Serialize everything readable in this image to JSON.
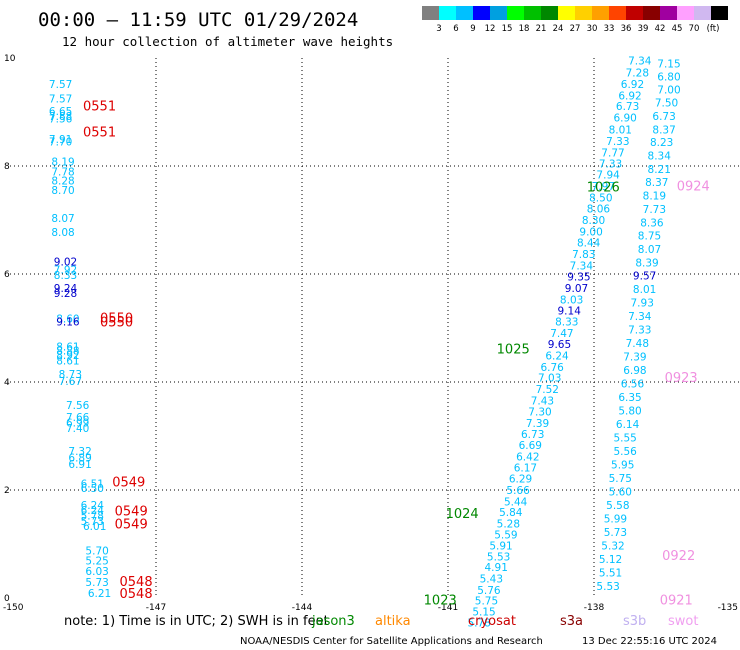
{
  "header": {
    "title": "00:00 – 11:59 UTC 01/29/2024",
    "subtitle": "12 hour collection of altimeter wave heights"
  },
  "colorbar": {
    "colors": [
      "#808080",
      "#00ffff",
      "#00c0ff",
      "#0000ff",
      "#00a0e0",
      "#00ff00",
      "#00c000",
      "#008800",
      "#ffff00",
      "#ffd000",
      "#ffa000",
      "#ff4400",
      "#c00000",
      "#880000",
      "#a000a0",
      "#ffa0ff",
      "#d0b8f0",
      "#000000"
    ],
    "labels": [
      "3",
      "6",
      "9",
      "12",
      "15",
      "18",
      "21",
      "24",
      "27",
      "30",
      "33",
      "36",
      "39",
      "42",
      "45",
      "70"
    ],
    "unit": "(ft)"
  },
  "chart_data": {
    "type": "scatter",
    "title": "",
    "xlabel": "",
    "ylabel": "",
    "xlim": [
      -150,
      -135
    ],
    "ylim": [
      0,
      10
    ],
    "grid": true,
    "x_ticks": [
      -150,
      -147,
      -144,
      -141,
      -138,
      -135
    ],
    "y_ticks": [
      0,
      2,
      4,
      6,
      8,
      10
    ],
    "tick_labels_x": [
      "-150",
      "-147",
      "-144",
      "-141",
      "-138",
      "-135"
    ],
    "tick_labels_y": [
      "0",
      "2",
      "4",
      "6",
      "8",
      "10"
    ],
    "series": [
      {
        "name": "jason3",
        "color": "#008800",
        "points": []
      },
      {
        "name": "altika",
        "color": "#ff8800",
        "points": []
      },
      {
        "name": "cryosat",
        "color": "#cc0000",
        "points": []
      },
      {
        "name": "s3a",
        "color": "#880000",
        "points": []
      },
      {
        "name": "s3b",
        "color": "#c0b0f0",
        "points": []
      },
      {
        "name": "swot",
        "color": "#f0a0f0",
        "points": []
      }
    ],
    "track_a": [
      {
        "x": -149.2,
        "y": 9.52,
        "v": "7.57",
        "c": "#00c0ff"
      },
      {
        "x": -149.2,
        "y": 9.25,
        "v": "7.57",
        "c": "#00c0ff"
      },
      {
        "x": -149.2,
        "y": 9.02,
        "v": "6.65",
        "c": "#00c0ff"
      },
      {
        "x": -149.2,
        "y": 8.93,
        "v": "7.88",
        "c": "#00c0ff"
      },
      {
        "x": -149.2,
        "y": 8.88,
        "v": "7.56",
        "c": "#00c0ff"
      },
      {
        "x": -149.2,
        "y": 8.5,
        "v": "7.91",
        "c": "#00c0ff"
      },
      {
        "x": -149.2,
        "y": 8.45,
        "v": "7.70",
        "c": "#00c0ff"
      },
      {
        "x": -149.15,
        "y": 8.08,
        "v": "8.19",
        "c": "#00c0ff"
      },
      {
        "x": -149.15,
        "y": 7.9,
        "v": "7.78",
        "c": "#00c0ff"
      },
      {
        "x": -149.15,
        "y": 7.73,
        "v": "8.28",
        "c": "#00c0ff"
      },
      {
        "x": -149.15,
        "y": 7.56,
        "v": "8.70",
        "c": "#00c0ff"
      },
      {
        "x": -149.15,
        "y": 7.04,
        "v": "8.07",
        "c": "#00c0ff"
      },
      {
        "x": -149.15,
        "y": 6.78,
        "v": "8.08",
        "c": "#00c0ff"
      },
      {
        "x": -149.1,
        "y": 6.23,
        "v": "9.02",
        "c": "#0000cc"
      },
      {
        "x": -149.1,
        "y": 6.08,
        "v": "7.92",
        "c": "#00c0ff"
      },
      {
        "x": -149.1,
        "y": 5.98,
        "v": "8.33",
        "c": "#00c0ff"
      },
      {
        "x": -149.1,
        "y": 5.74,
        "v": "9.24",
        "c": "#0000cc"
      },
      {
        "x": -149.1,
        "y": 5.65,
        "v": "9.28",
        "c": "#0000cc"
      },
      {
        "x": -149.05,
        "y": 5.18,
        "v": "8.60",
        "c": "#00c0ff"
      },
      {
        "x": -149.05,
        "y": 5.12,
        "v": "9.16",
        "c": "#0000cc"
      },
      {
        "x": -149.05,
        "y": 4.66,
        "v": "8.61",
        "c": "#00c0ff"
      },
      {
        "x": -149.05,
        "y": 4.58,
        "v": "8.88",
        "c": "#00c0ff"
      },
      {
        "x": -149.05,
        "y": 4.5,
        "v": "8.92",
        "c": "#00c0ff"
      },
      {
        "x": -149.05,
        "y": 4.4,
        "v": "8.61",
        "c": "#00c0ff"
      },
      {
        "x": -149.0,
        "y": 4.15,
        "v": "8.73",
        "c": "#00c0ff"
      },
      {
        "x": -149.0,
        "y": 4.02,
        "v": "7.67",
        "c": "#00c0ff"
      },
      {
        "x": -148.85,
        "y": 3.57,
        "v": "7.56",
        "c": "#00c0ff"
      },
      {
        "x": -148.85,
        "y": 3.35,
        "v": "7.66",
        "c": "#00c0ff"
      },
      {
        "x": -148.85,
        "y": 3.25,
        "v": "6.99",
        "c": "#00c0ff"
      },
      {
        "x": -148.85,
        "y": 3.15,
        "v": "7.40",
        "c": "#00c0ff"
      },
      {
        "x": -148.8,
        "y": 2.72,
        "v": "7.32",
        "c": "#00c0ff"
      },
      {
        "x": -148.8,
        "y": 2.6,
        "v": "6.89",
        "c": "#00c0ff"
      },
      {
        "x": -148.8,
        "y": 2.48,
        "v": "6.91",
        "c": "#00c0ff"
      },
      {
        "x": -148.55,
        "y": 2.12,
        "v": "6.51",
        "c": "#00c0ff"
      },
      {
        "x": -148.55,
        "y": 2.04,
        "v": "6.50",
        "c": "#00c0ff"
      },
      {
        "x": -148.55,
        "y": 1.72,
        "v": "6.24",
        "c": "#00c0ff"
      },
      {
        "x": -148.55,
        "y": 1.63,
        "v": "6.24",
        "c": "#00c0ff"
      },
      {
        "x": -148.55,
        "y": 1.53,
        "v": "5.78",
        "c": "#00c0ff"
      },
      {
        "x": -148.55,
        "y": 1.43,
        "v": "5.73",
        "c": "#00c0ff"
      },
      {
        "x": -148.5,
        "y": 1.33,
        "v": "6.01",
        "c": "#00c0ff"
      },
      {
        "x": -148.45,
        "y": 0.88,
        "v": "5.70",
        "c": "#00c0ff"
      },
      {
        "x": -148.45,
        "y": 0.69,
        "v": "5.25",
        "c": "#00c0ff"
      },
      {
        "x": -148.45,
        "y": 0.5,
        "v": "6.03",
        "c": "#00c0ff"
      },
      {
        "x": -148.45,
        "y": 0.3,
        "v": "5.73",
        "c": "#00c0ff"
      },
      {
        "x": -148.4,
        "y": 0.09,
        "v": "6.21",
        "c": "#00c0ff"
      }
    ],
    "track_b": [
      {
        "x": -137.3,
        "y": 9.95,
        "v": "7.34",
        "c": "#00c0ff"
      },
      {
        "x": -137.35,
        "y": 9.73,
        "v": "7.28",
        "c": "#00c0ff"
      },
      {
        "x": -137.45,
        "y": 9.52,
        "v": "6.92",
        "c": "#00c0ff"
      },
      {
        "x": -137.5,
        "y": 9.31,
        "v": "6.92",
        "c": "#00c0ff"
      },
      {
        "x": -137.55,
        "y": 9.11,
        "v": "6.73",
        "c": "#00c0ff"
      },
      {
        "x": -137.6,
        "y": 8.9,
        "v": "6.90",
        "c": "#00c0ff"
      },
      {
        "x": -137.7,
        "y": 8.68,
        "v": "8.01",
        "c": "#00c0ff"
      },
      {
        "x": -137.75,
        "y": 8.46,
        "v": "7.33",
        "c": "#00c0ff"
      },
      {
        "x": -137.85,
        "y": 8.25,
        "v": "7.77",
        "c": "#00c0ff"
      },
      {
        "x": -137.9,
        "y": 8.05,
        "v": "7.33",
        "c": "#00c0ff"
      },
      {
        "x": -137.95,
        "y": 7.84,
        "v": "7.94",
        "c": "#00c0ff"
      },
      {
        "x": -138.05,
        "y": 7.63,
        "v": "7.97",
        "c": "#00c0ff"
      },
      {
        "x": -138.1,
        "y": 7.42,
        "v": "8.50",
        "c": "#00c0ff"
      },
      {
        "x": -138.15,
        "y": 7.21,
        "v": "8.06",
        "c": "#00c0ff"
      },
      {
        "x": -138.25,
        "y": 7.0,
        "v": "8.30",
        "c": "#00c0ff"
      },
      {
        "x": -138.3,
        "y": 6.79,
        "v": "9.00",
        "c": "#00c0ff"
      },
      {
        "x": -138.35,
        "y": 6.58,
        "v": "8.44",
        "c": "#00c0ff"
      },
      {
        "x": -138.45,
        "y": 6.37,
        "v": "7.83",
        "c": "#00c0ff"
      },
      {
        "x": -138.5,
        "y": 6.16,
        "v": "7.34",
        "c": "#00c0ff"
      },
      {
        "x": -138.55,
        "y": 5.95,
        "v": "9.35",
        "c": "#0000cc"
      },
      {
        "x": -138.6,
        "y": 5.74,
        "v": "9.07",
        "c": "#0000cc"
      },
      {
        "x": -138.7,
        "y": 5.53,
        "v": "8.03",
        "c": "#00c0ff"
      },
      {
        "x": -138.75,
        "y": 5.32,
        "v": "9.14",
        "c": "#0000cc"
      },
      {
        "x": -138.8,
        "y": 5.12,
        "v": "8.33",
        "c": "#00c0ff"
      },
      {
        "x": -138.9,
        "y": 4.91,
        "v": "7.47",
        "c": "#00c0ff"
      },
      {
        "x": -138.95,
        "y": 4.7,
        "v": "9.65",
        "c": "#0000cc"
      },
      {
        "x": -139.0,
        "y": 4.49,
        "v": "6.24",
        "c": "#00c0ff"
      },
      {
        "x": -139.1,
        "y": 4.28,
        "v": "6.76",
        "c": "#00c0ff"
      },
      {
        "x": -139.15,
        "y": 4.08,
        "v": "7.03",
        "c": "#00c0ff"
      },
      {
        "x": -139.2,
        "y": 3.87,
        "v": "7.52",
        "c": "#00c0ff"
      },
      {
        "x": -139.3,
        "y": 3.66,
        "v": "7.43",
        "c": "#00c0ff"
      },
      {
        "x": -139.35,
        "y": 3.45,
        "v": "7.30",
        "c": "#00c0ff"
      },
      {
        "x": -139.4,
        "y": 3.24,
        "v": "7.39",
        "c": "#00c0ff"
      },
      {
        "x": -139.5,
        "y": 3.04,
        "v": "6.73",
        "c": "#00c0ff"
      },
      {
        "x": -139.55,
        "y": 2.83,
        "v": "6.69",
        "c": "#00c0ff"
      },
      {
        "x": -139.6,
        "y": 2.62,
        "v": "6.42",
        "c": "#00c0ff"
      },
      {
        "x": -139.65,
        "y": 2.42,
        "v": "6.17",
        "c": "#00c0ff"
      },
      {
        "x": -139.75,
        "y": 2.21,
        "v": "6.29",
        "c": "#00c0ff"
      },
      {
        "x": -139.8,
        "y": 2.0,
        "v": "5.66",
        "c": "#00c0ff"
      },
      {
        "x": -139.85,
        "y": 1.79,
        "v": "5.44",
        "c": "#00c0ff"
      },
      {
        "x": -139.95,
        "y": 1.59,
        "v": "5.84",
        "c": "#00c0ff"
      },
      {
        "x": -140.0,
        "y": 1.38,
        "v": "5.28",
        "c": "#00c0ff"
      },
      {
        "x": -140.05,
        "y": 1.18,
        "v": "5.59",
        "c": "#00c0ff"
      },
      {
        "x": -140.15,
        "y": 0.97,
        "v": "5.91",
        "c": "#00c0ff"
      },
      {
        "x": -140.2,
        "y": 0.77,
        "v": "5.53",
        "c": "#00c0ff"
      },
      {
        "x": -140.25,
        "y": 0.57,
        "v": "4.91",
        "c": "#00c0ff"
      },
      {
        "x": -140.35,
        "y": 0.36,
        "v": "5.43",
        "c": "#00c0ff"
      },
      {
        "x": -140.4,
        "y": 0.15,
        "v": "5.76",
        "c": "#00c0ff"
      },
      {
        "x": -140.45,
        "y": -0.05,
        "v": "5.75",
        "c": "#00c0ff"
      },
      {
        "x": -140.5,
        "y": -0.25,
        "v": "5.15",
        "c": "#00c0ff"
      },
      {
        "x": -140.6,
        "y": -0.45,
        "v": "5.78",
        "c": "#00c0ff"
      }
    ],
    "track_c": [
      {
        "x": -136.7,
        "y": 9.9,
        "v": "7.15",
        "c": "#00c0ff"
      },
      {
        "x": -136.7,
        "y": 9.66,
        "v": "6.80",
        "c": "#00c0ff"
      },
      {
        "x": -136.7,
        "y": 9.42,
        "v": "7.00",
        "c": "#00c0ff"
      },
      {
        "x": -136.75,
        "y": 9.18,
        "v": "7.50",
        "c": "#00c0ff"
      },
      {
        "x": -136.8,
        "y": 8.93,
        "v": "6.73",
        "c": "#00c0ff"
      },
      {
        "x": -136.8,
        "y": 8.68,
        "v": "8.37",
        "c": "#00c0ff"
      },
      {
        "x": -136.85,
        "y": 8.44,
        "v": "8.23",
        "c": "#00c0ff"
      },
      {
        "x": -136.9,
        "y": 8.19,
        "v": "8.34",
        "c": "#00c0ff"
      },
      {
        "x": -136.9,
        "y": 7.94,
        "v": "8.21",
        "c": "#00c0ff"
      },
      {
        "x": -136.95,
        "y": 7.7,
        "v": "8.37",
        "c": "#00c0ff"
      },
      {
        "x": -137.0,
        "y": 7.45,
        "v": "8.19",
        "c": "#00c0ff"
      },
      {
        "x": -137.0,
        "y": 7.2,
        "v": "7.73",
        "c": "#00c0ff"
      },
      {
        "x": -137.05,
        "y": 6.95,
        "v": "8.36",
        "c": "#00c0ff"
      },
      {
        "x": -137.1,
        "y": 6.71,
        "v": "8.75",
        "c": "#00c0ff"
      },
      {
        "x": -137.1,
        "y": 6.46,
        "v": "8.07",
        "c": "#00c0ff"
      },
      {
        "x": -137.15,
        "y": 6.21,
        "v": "8.39",
        "c": "#00c0ff"
      },
      {
        "x": -137.2,
        "y": 5.97,
        "v": "9.57",
        "c": "#0000cc"
      },
      {
        "x": -137.2,
        "y": 5.72,
        "v": "8.01",
        "c": "#00c0ff"
      },
      {
        "x": -137.25,
        "y": 5.47,
        "v": "7.93",
        "c": "#00c0ff"
      },
      {
        "x": -137.3,
        "y": 5.22,
        "v": "7.34",
        "c": "#00c0ff"
      },
      {
        "x": -137.3,
        "y": 4.97,
        "v": "7.33",
        "c": "#00c0ff"
      },
      {
        "x": -137.35,
        "y": 4.72,
        "v": "7.48",
        "c": "#00c0ff"
      },
      {
        "x": -137.4,
        "y": 4.47,
        "v": "7.39",
        "c": "#00c0ff"
      },
      {
        "x": -137.4,
        "y": 4.22,
        "v": "6.98",
        "c": "#00c0ff"
      },
      {
        "x": -137.45,
        "y": 3.97,
        "v": "6.56",
        "c": "#00c0ff"
      },
      {
        "x": -137.5,
        "y": 3.72,
        "v": "6.35",
        "c": "#00c0ff"
      },
      {
        "x": -137.5,
        "y": 3.47,
        "v": "5.80",
        "c": "#00c0ff"
      },
      {
        "x": -137.55,
        "y": 3.22,
        "v": "6.14",
        "c": "#00c0ff"
      },
      {
        "x": -137.6,
        "y": 2.97,
        "v": "5.55",
        "c": "#00c0ff"
      },
      {
        "x": -137.6,
        "y": 2.72,
        "v": "5.56",
        "c": "#00c0ff"
      },
      {
        "x": -137.65,
        "y": 2.47,
        "v": "5.95",
        "c": "#00c0ff"
      },
      {
        "x": -137.7,
        "y": 2.22,
        "v": "5.75",
        "c": "#00c0ff"
      },
      {
        "x": -137.7,
        "y": 1.97,
        "v": "5.60",
        "c": "#00c0ff"
      },
      {
        "x": -137.75,
        "y": 1.72,
        "v": "5.58",
        "c": "#00c0ff"
      },
      {
        "x": -137.8,
        "y": 1.47,
        "v": "5.99",
        "c": "#00c0ff"
      },
      {
        "x": -137.8,
        "y": 1.22,
        "v": "5.73",
        "c": "#00c0ff"
      },
      {
        "x": -137.85,
        "y": 0.97,
        "v": "5.32",
        "c": "#00c0ff"
      },
      {
        "x": -137.9,
        "y": 0.72,
        "v": "5.12",
        "c": "#00c0ff"
      },
      {
        "x": -137.9,
        "y": 0.47,
        "v": "5.51",
        "c": "#00c0ff"
      },
      {
        "x": -137.95,
        "y": 0.22,
        "v": "5.53",
        "c": "#00c0ff"
      }
    ],
    "time_labels": [
      {
        "x": -148.5,
        "y": 9.1,
        "v": "0551",
        "c": "#dd0000"
      },
      {
        "x": -148.5,
        "y": 8.62,
        "v": "0551",
        "c": "#dd0000"
      },
      {
        "x": -148.15,
        "y": 5.18,
        "v": "0550",
        "c": "#dd0000"
      },
      {
        "x": -148.15,
        "y": 5.1,
        "v": "0550",
        "c": "#dd0000"
      },
      {
        "x": -147.9,
        "y": 2.14,
        "v": "0549",
        "c": "#dd0000"
      },
      {
        "x": -147.85,
        "y": 1.6,
        "v": "0549",
        "c": "#dd0000"
      },
      {
        "x": -147.85,
        "y": 1.36,
        "v": "0549",
        "c": "#dd0000"
      },
      {
        "x": -147.75,
        "y": 0.3,
        "v": "0548",
        "c": "#dd0000"
      },
      {
        "x": -147.75,
        "y": 0.07,
        "v": "0548",
        "c": "#dd0000"
      },
      {
        "x": -138.15,
        "y": 7.6,
        "v": "1026",
        "c": "#008800"
      },
      {
        "x": -140.0,
        "y": 4.6,
        "v": "1025",
        "c": "#008800"
      },
      {
        "x": -141.05,
        "y": 1.56,
        "v": "1024",
        "c": "#008800"
      },
      {
        "x": -141.5,
        "y": -0.05,
        "v": "1023",
        "c": "#008800"
      },
      {
        "x": -136.3,
        "y": 7.62,
        "v": "0924",
        "c": "#f090e0"
      },
      {
        "x": -136.55,
        "y": 4.07,
        "v": "0923",
        "c": "#f090e0"
      },
      {
        "x": -136.6,
        "y": 0.78,
        "v": "0922",
        "c": "#f090e0"
      },
      {
        "x": -136.65,
        "y": -0.05,
        "v": "0921",
        "c": "#f090e0"
      }
    ]
  },
  "legend": {
    "note": "note:  1) Time is in UTC; 2) SWH is in feet",
    "satellites": [
      {
        "name": "jason3",
        "color": "#008800"
      },
      {
        "name": "altika",
        "color": "#ff8800"
      },
      {
        "name": "cryosat",
        "color": "#cc0000"
      },
      {
        "name": "s3a",
        "color": "#880000"
      },
      {
        "name": "s3b",
        "color": "#c0b0f0"
      },
      {
        "name": "swot",
        "color": "#f0a0f0"
      }
    ]
  },
  "footer": {
    "credit": "NOAA/NESDIS Center for Satellite Applications and Research",
    "timestamp": "13 Dec 22:55:16 UTC 2024"
  }
}
